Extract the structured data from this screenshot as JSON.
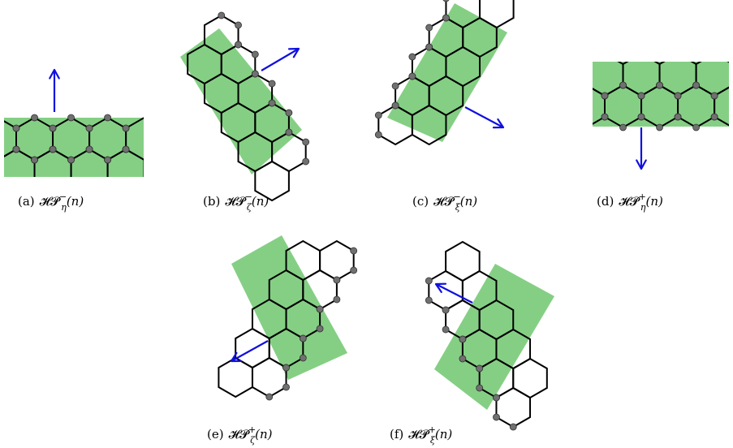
{
  "colors": {
    "fill": "#85cf85",
    "edge": "#000000",
    "vertex": "#707070",
    "arrow": "#1010e0"
  },
  "panels": [
    {
      "id": "a",
      "tag": "(a)",
      "sign": "−",
      "sub": "η"
    },
    {
      "id": "b",
      "tag": "(b)",
      "sign": "−",
      "sub": "ζ"
    },
    {
      "id": "c",
      "tag": "(c)",
      "sign": "−",
      "sub": "ξ"
    },
    {
      "id": "d",
      "tag": "(d)",
      "sign": "+",
      "sub": "η"
    },
    {
      "id": "e",
      "tag": "(e)",
      "sign": "+",
      "sub": "ζ"
    },
    {
      "id": "f",
      "tag": "(f)",
      "sign": "+",
      "sub": "ξ"
    }
  ],
  "caption_base": "𝓗𝓟",
  "caption_arg": "(n)"
}
